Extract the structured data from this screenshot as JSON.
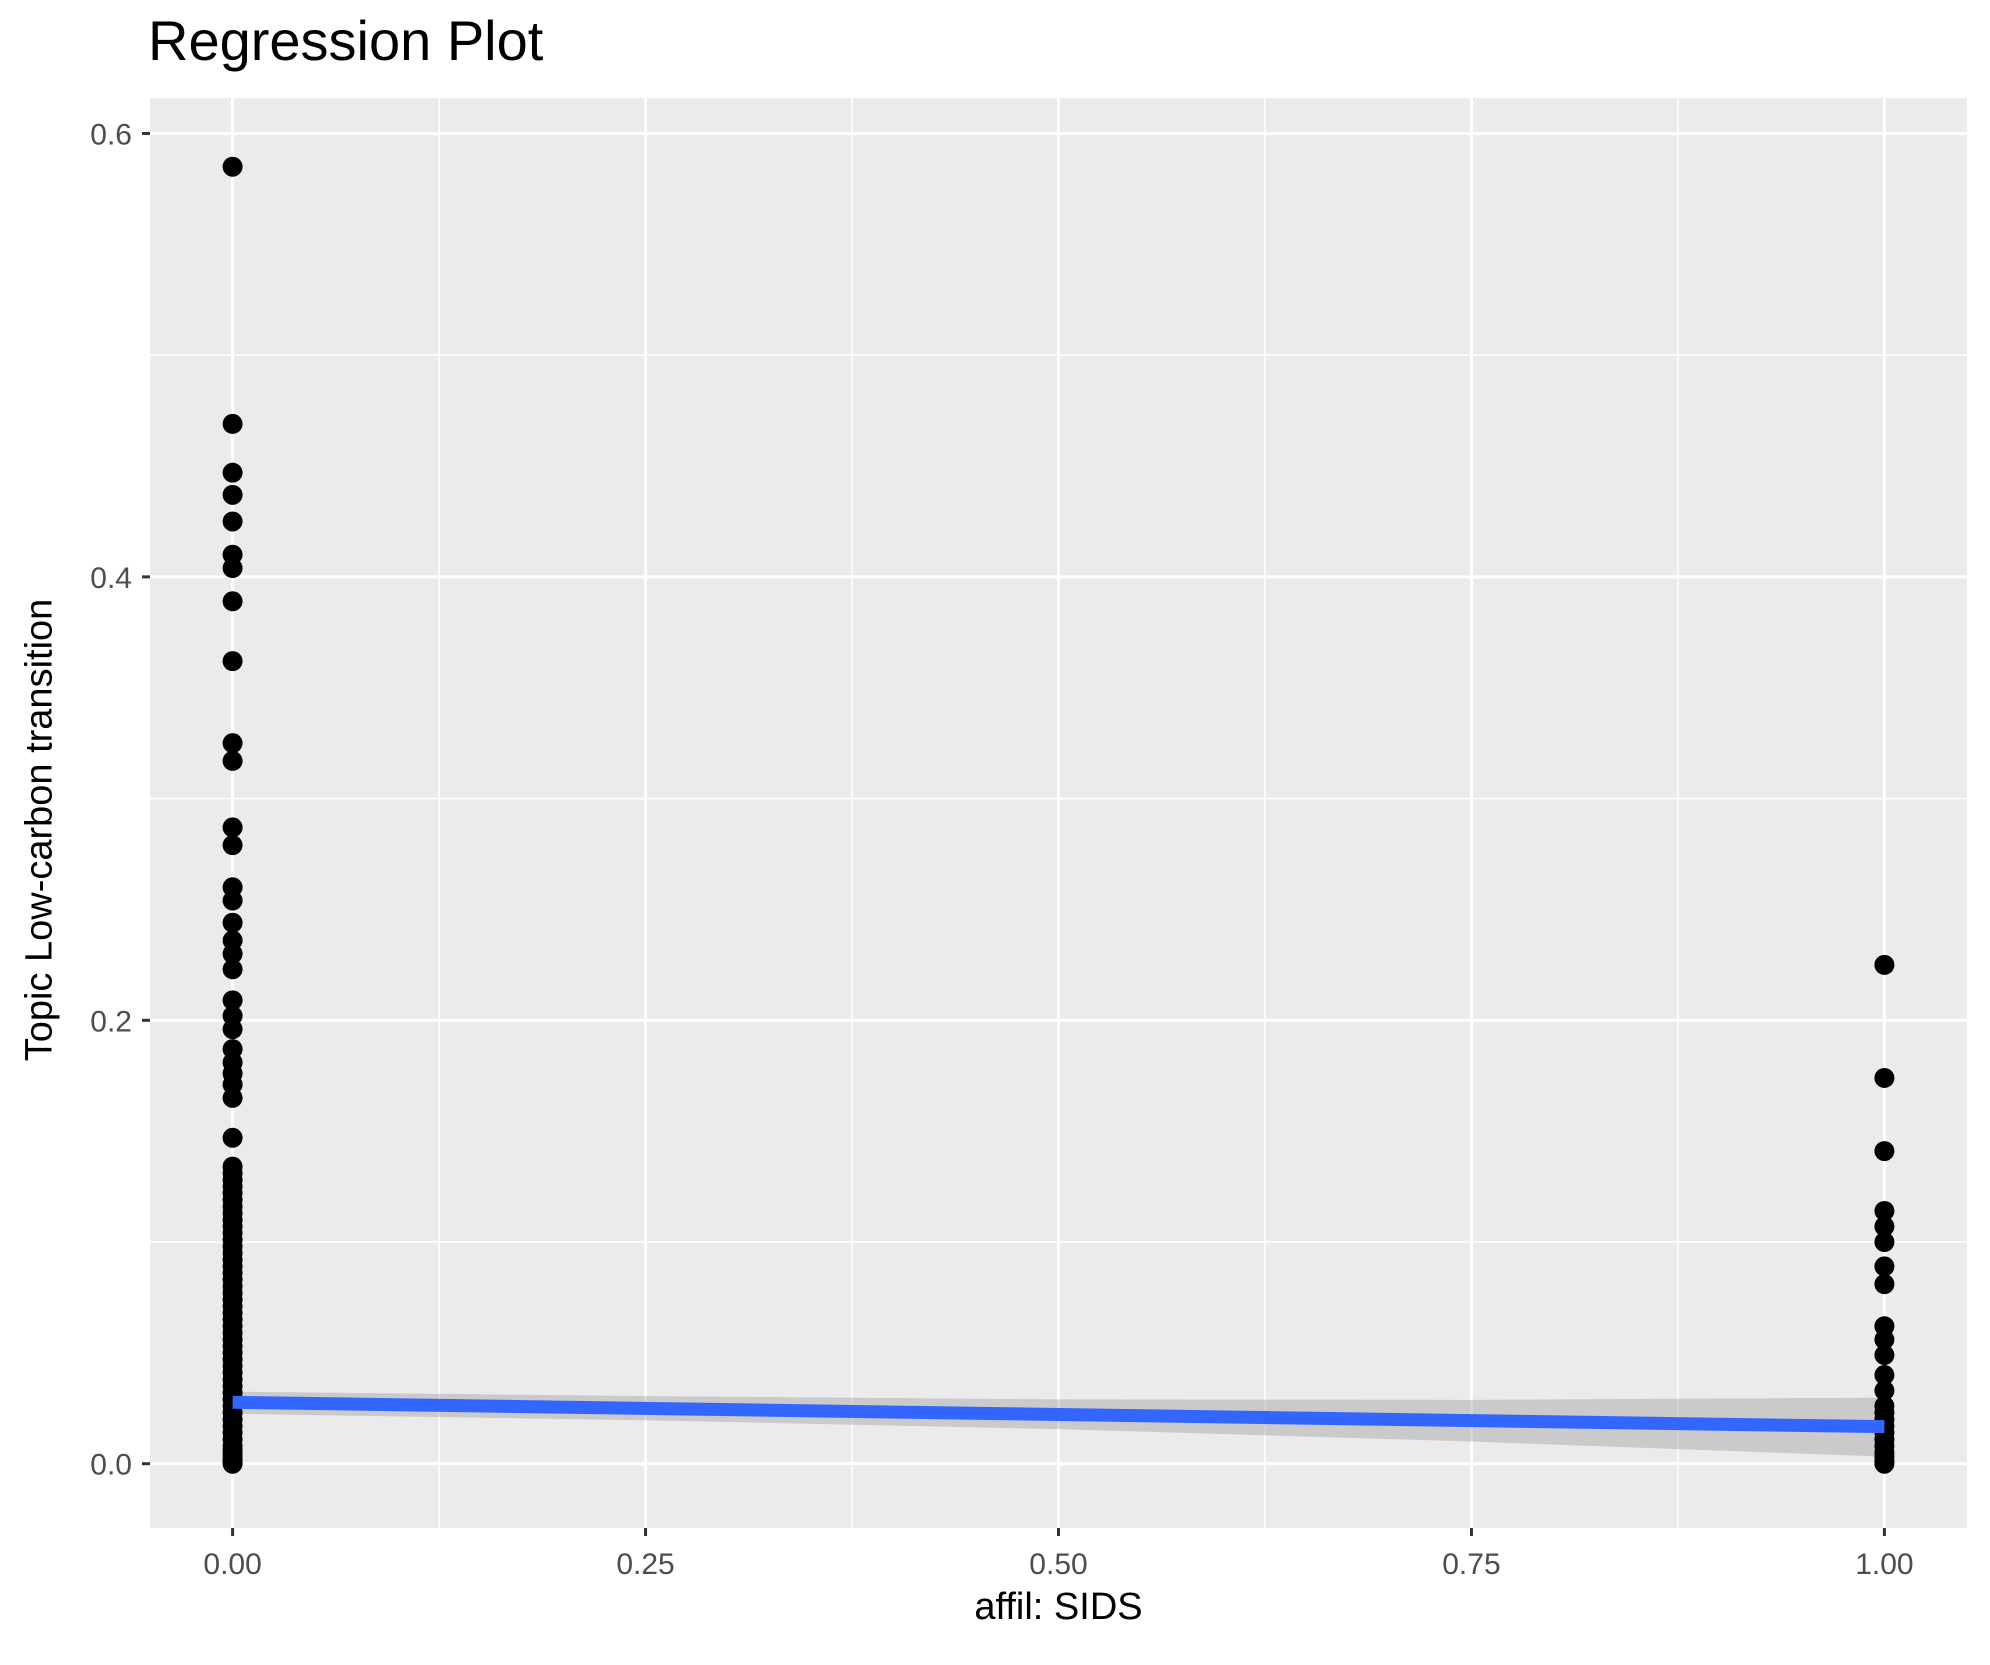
{
  "title": "Regression Plot",
  "axes": {
    "x": {
      "label": "affil: SIDS",
      "tick_labels": [
        "0.00",
        "0.25",
        "0.50",
        "0.75",
        "1.00"
      ],
      "tick_values": [
        0,
        0.25,
        0.5,
        0.75,
        1.0
      ],
      "minor_values": [
        0.125,
        0.375,
        0.625,
        0.875
      ],
      "domain": [
        -0.05,
        1.05
      ]
    },
    "y": {
      "label": "Topic Low-carbon transition",
      "tick_labels": [
        "0.0",
        "0.2",
        "0.4",
        "0.6"
      ],
      "tick_values": [
        0,
        0.2,
        0.4,
        0.6
      ],
      "minor_values": [
        0.1,
        0.3,
        0.5
      ],
      "domain": [
        -0.029,
        0.616
      ]
    }
  },
  "chart_data": {
    "type": "scatter",
    "title": "Regression Plot",
    "xlabel": "affil: SIDS",
    "ylabel": "Topic Low-carbon transition",
    "xlim": [
      -0.05,
      1.05
    ],
    "ylim": [
      -0.029,
      0.616
    ],
    "grid": "on",
    "legend": "none",
    "groups": [
      {
        "x": 0,
        "y_values": [
          0.585,
          0.469,
          0.447,
          0.437,
          0.425,
          0.41,
          0.404,
          0.389,
          0.362,
          0.325,
          0.317,
          0.287,
          0.279,
          0.26,
          0.254,
          0.244,
          0.236,
          0.23,
          0.223,
          0.209,
          0.202,
          0.196,
          0.187,
          0.181,
          0.176,
          0.171,
          0.165,
          0.147,
          0.134,
          0.131,
          0.128,
          0.125,
          0.122,
          0.119,
          0.116,
          0.113,
          0.11,
          0.107,
          0.104,
          0.101,
          0.098,
          0.095,
          0.092,
          0.089,
          0.086,
          0.083,
          0.08,
          0.077,
          0.074,
          0.071,
          0.068,
          0.065,
          0.062,
          0.059,
          0.056,
          0.053,
          0.05,
          0.047,
          0.044,
          0.041,
          0.038,
          0.035,
          0.032,
          0.029,
          0.026,
          0.023,
          0.02,
          0.017,
          0.014,
          0.011,
          0.008,
          0.006,
          0.004,
          0.002,
          0.001,
          0.0
        ]
      },
      {
        "x": 1,
        "y_values": [
          0.225,
          0.174,
          0.141,
          0.114,
          0.107,
          0.1,
          0.089,
          0.081,
          0.062,
          0.056,
          0.049,
          0.04,
          0.033,
          0.026,
          0.023,
          0.02,
          0.017,
          0.014,
          0.011,
          0.008,
          0.005,
          0.003,
          0.001,
          0.0
        ]
      }
    ],
    "regression": {
      "line_x": [
        0,
        1
      ],
      "line_y": [
        0.0277,
        0.0167
      ],
      "ci_upper": [
        [
          0,
          0.0325
        ],
        [
          0.25,
          0.0305
        ],
        [
          0.5,
          0.029
        ],
        [
          0.75,
          0.0288
        ],
        [
          1,
          0.0298
        ]
      ],
      "ci_lower": [
        [
          0,
          0.0225
        ],
        [
          0.25,
          0.0196
        ],
        [
          0.5,
          0.0156
        ],
        [
          0.75,
          0.01
        ],
        [
          1,
          0.0032
        ]
      ]
    }
  },
  "style": {
    "panel_bg": "#EBEBEB",
    "grid_color": "#FFFFFF",
    "point_color": "#000000",
    "line_color": "#3366FF",
    "ci_color": "#999999",
    "ci_opacity": 0.4,
    "tick_label_color": "#4D4D4D",
    "tick_color": "#333333"
  }
}
